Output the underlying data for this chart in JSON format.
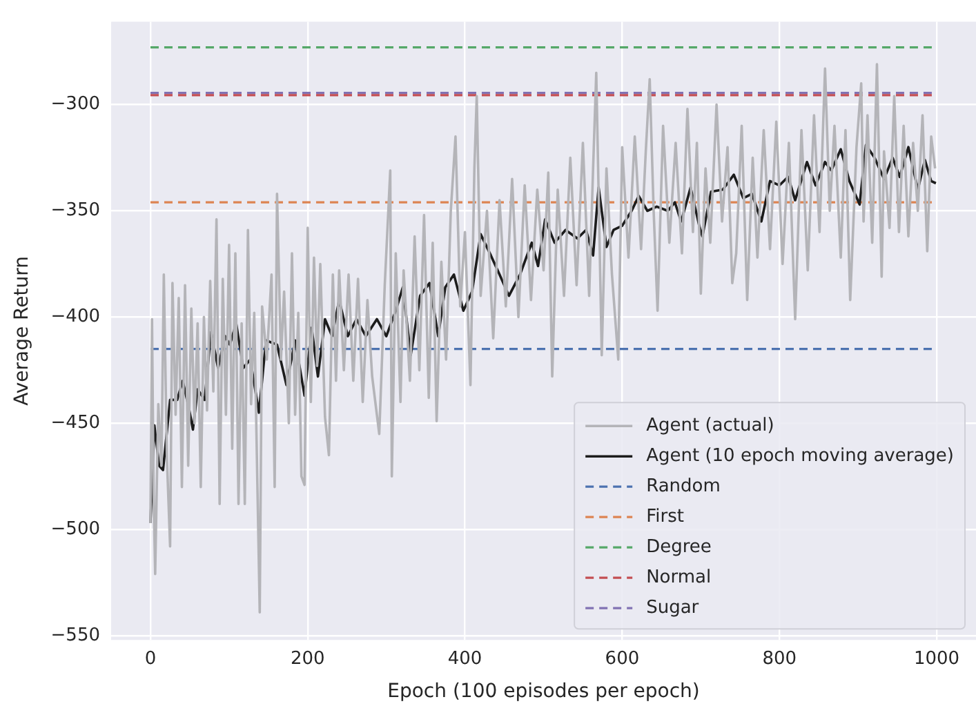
{
  "chart_data": {
    "type": "line",
    "xlabel": "Epoch (100 episodes per epoch)",
    "ylabel": "Average Return",
    "xlim": [
      -50,
      1050
    ],
    "ylim": [
      -552,
      -261
    ],
    "xticks": [
      0,
      200,
      400,
      600,
      800,
      1000
    ],
    "yticks": [
      -550,
      -500,
      -450,
      -400,
      -350,
      -300
    ],
    "grid": true,
    "legend": "bottom right",
    "line_style": "solid",
    "marker": "none",
    "series": [
      {
        "name": "Agent (actual)",
        "color": "#b4b4b8",
        "x": [
          0,
          2,
          4,
          6,
          10,
          14,
          17,
          21,
          25,
          28,
          32,
          36,
          40,
          44,
          48,
          52,
          56,
          60,
          64,
          68,
          72,
          76,
          80,
          84,
          88,
          92,
          96,
          100,
          104,
          108,
          112,
          116,
          120,
          124,
          128,
          132,
          139,
          142,
          148,
          154,
          158,
          161,
          166,
          170,
          176,
          180,
          184,
          188,
          192,
          196,
          200,
          204,
          208,
          212,
          216,
          222,
          227,
          232,
          236,
          240,
          246,
          252,
          258,
          264,
          270,
          276,
          282,
          291,
          298,
          305,
          307,
          312,
          318,
          322,
          330,
          336,
          342,
          348,
          354,
          359,
          364,
          370,
          376,
          382,
          388,
          394,
          400,
          407,
          412,
          415,
          420,
          428,
          436,
          444,
          452,
          460,
          468,
          476,
          484,
          492,
          500,
          506,
          511,
          518,
          526,
          534,
          542,
          550,
          558,
          563,
          567,
          571,
          574,
          580,
          587,
          595,
          600,
          608,
          616,
          624,
          630,
          635,
          640,
          645,
          652,
          660,
          668,
          676,
          683,
          690,
          695,
          700,
          706,
          712,
          720,
          727,
          734,
          740,
          745,
          752,
          759,
          766,
          772,
          780,
          788,
          796,
          804,
          812,
          820,
          828,
          836,
          844,
          851,
          858,
          864,
          870,
          878,
          884,
          890,
          898,
          904,
          907,
          912,
          918,
          924,
          930,
          933,
          940,
          946,
          952,
          958,
          964,
          970,
          976,
          982,
          988,
          993,
          998
        ],
        "values": [
          -497,
          -401,
          -483,
          -521,
          -441,
          -470,
          -380,
          -467,
          -508,
          -384,
          -446,
          -391,
          -480,
          -385,
          -470,
          -396,
          -450,
          -403,
          -480,
          -400,
          -444,
          -383,
          -435,
          -354,
          -488,
          -382,
          -446,
          -366,
          -462,
          -370,
          -488,
          -403,
          -488,
          -359,
          -441,
          -398,
          -539,
          -395,
          -420,
          -380,
          -480,
          -342,
          -420,
          -388,
          -450,
          -370,
          -446,
          -398,
          -475,
          -479,
          -358,
          -440,
          -372,
          -423,
          -375,
          -447,
          -465,
          -380,
          -430,
          -378,
          -425,
          -380,
          -430,
          -382,
          -440,
          -392,
          -428,
          -455,
          -385,
          -331,
          -475,
          -370,
          -440,
          -378,
          -430,
          -362,
          -425,
          -352,
          -438,
          -365,
          -449,
          -374,
          -420,
          -350,
          -315,
          -395,
          -360,
          -432,
          -330,
          -296,
          -390,
          -350,
          -410,
          -345,
          -395,
          -335,
          -400,
          -338,
          -392,
          -340,
          -378,
          -332,
          -428,
          -340,
          -390,
          -325,
          -385,
          -318,
          -390,
          -330,
          -285,
          -360,
          -418,
          -330,
          -380,
          -420,
          -320,
          -372,
          -315,
          -368,
          -322,
          -288,
          -350,
          -397,
          -310,
          -365,
          -318,
          -370,
          -302,
          -360,
          -318,
          -389,
          -330,
          -365,
          -300,
          -355,
          -320,
          -384,
          -370,
          -310,
          -392,
          -325,
          -372,
          -312,
          -368,
          -308,
          -375,
          -318,
          -401,
          -312,
          -378,
          -305,
          -360,
          -283,
          -350,
          -310,
          -372,
          -312,
          -392,
          -320,
          -290,
          -355,
          -305,
          -365,
          -281,
          -381,
          -322,
          -358,
          -296,
          -360,
          -310,
          -362,
          -318,
          -350,
          -305,
          -369,
          -315,
          -330
        ]
      },
      {
        "name": "Agent (10 epoch moving average)",
        "color": "#1c1c1c",
        "x": [
          0,
          3,
          5,
          11,
          16,
          25,
          34,
          41,
          49,
          54,
          60,
          69,
          77,
          86,
          95,
          101,
          109,
          118,
          127,
          138,
          147,
          161,
          173,
          184,
          196,
          205,
          213,
          222,
          231,
          240,
          251,
          262,
          274,
          288,
          300,
          312,
          321,
          331,
          343,
          355,
          366,
          375,
          386,
          398,
          409,
          420,
          433,
          444,
          456,
          470,
          485,
          493,
          502,
          514,
          528,
          543,
          554,
          563,
          570,
          580,
          589,
          600,
          612,
          621,
          632,
          644,
          658,
          667,
          675,
          687,
          698,
          702,
          713,
          728,
          742,
          754,
          765,
          777,
          788,
          800,
          811,
          820,
          835,
          846,
          858,
          866,
          878,
          889,
          902,
          910,
          921,
          933,
          944,
          953,
          964,
          976,
          985,
          993,
          999
        ],
        "values": [
          -497,
          -468,
          -451,
          -470,
          -472,
          -439,
          -439,
          -430,
          -443,
          -453,
          -434,
          -439,
          -407,
          -424,
          -409,
          -413,
          -403,
          -424,
          -420,
          -445,
          -411,
          -413,
          -432,
          -411,
          -437,
          -405,
          -428,
          -401,
          -409,
          -392,
          -409,
          -401,
          -409,
          -401,
          -409,
          -397,
          -386,
          -418,
          -390,
          -384,
          -409,
          -386,
          -380,
          -397,
          -388,
          -361,
          -371,
          -380,
          -390,
          -380,
          -365,
          -376,
          -354,
          -365,
          -359,
          -363,
          -359,
          -371,
          -339,
          -367,
          -359,
          -357,
          -350,
          -343,
          -350,
          -348,
          -350,
          -346,
          -355,
          -339,
          -357,
          -362,
          -341,
          -340,
          -333,
          -344,
          -342,
          -355,
          -336,
          -338,
          -334,
          -345,
          -327,
          -338,
          -327,
          -331,
          -321,
          -336,
          -347,
          -319,
          -325,
          -335,
          -325,
          -334,
          -320,
          -340,
          -326,
          -336,
          -337
        ]
      },
      {
        "name": "Random",
        "color": "#4c72b0",
        "x": [
          0,
          1000
        ],
        "values": [
          -415,
          -415
        ],
        "line_style": "dashed"
      },
      {
        "name": "First",
        "color": "#dd8452",
        "x": [
          0,
          1000
        ],
        "values": [
          -346,
          -346
        ],
        "line_style": "dashed"
      },
      {
        "name": "Degree",
        "color": "#55a868",
        "x": [
          0,
          1000
        ],
        "values": [
          -273,
          -273
        ],
        "line_style": "dashed"
      },
      {
        "name": "Normal",
        "color": "#c44e52",
        "x": [
          0,
          1000
        ],
        "values": [
          -295.5,
          -295.5
        ],
        "line_style": "dashed"
      },
      {
        "name": "Sugar",
        "color": "#8172b3",
        "x": [
          0,
          1000
        ],
        "values": [
          -294.5,
          -294.5
        ],
        "line_style": "dashed"
      }
    ]
  }
}
